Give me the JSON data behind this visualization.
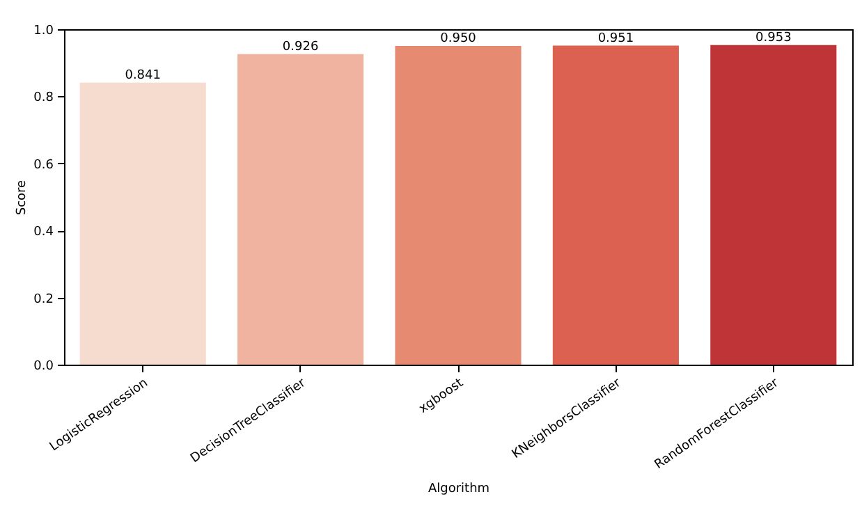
{
  "chart_data": {
    "type": "bar",
    "xlabel": "Algorithm",
    "ylabel": "Score",
    "categories": [
      "LogisticRegression",
      "DecisionTreeClassifier",
      "xgboost",
      "KNeighborsClassifier",
      "RandomForestClassifier"
    ],
    "values": [
      0.841,
      0.926,
      0.95,
      0.951,
      0.953
    ],
    "colors": [
      "#f6dbcf",
      "#f0b39f",
      "#e68b72",
      "#dc6150",
      "#bf3537"
    ],
    "value_labels": [
      "0.841",
      "0.926",
      "0.950",
      "0.951",
      "0.953"
    ],
    "ylim": [
      0,
      1
    ],
    "yticks": [
      {
        "value": 0,
        "label": "0.0"
      },
      {
        "value": 0.2,
        "label": "0.2"
      },
      {
        "value": 0.4,
        "label": "0.4"
      },
      {
        "value": 0.6,
        "label": "0.6"
      },
      {
        "value": 0.8,
        "label": "0.8"
      },
      {
        "value": 1,
        "label": "1.0"
      }
    ],
    "grid": false
  }
}
